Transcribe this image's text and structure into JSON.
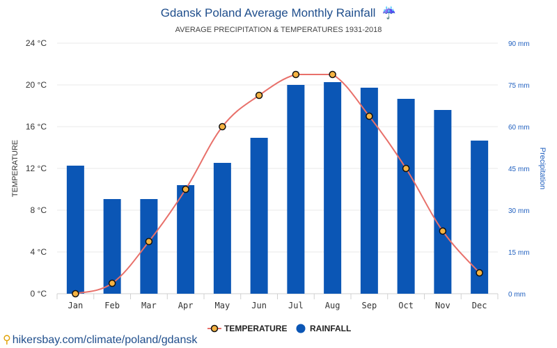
{
  "chart_data": {
    "type": "bar",
    "title": "Gdansk Poland Average Monthly Rainfall",
    "title_icon": "umbrella-rain-icon",
    "title_icon_glyph": "☔",
    "subtitle": "AVERAGE PRECIPITATION & TEMPERATURES 1931-2018",
    "categories": [
      "Jan",
      "Feb",
      "Mar",
      "Apr",
      "May",
      "Jun",
      "Jul",
      "Aug",
      "Sep",
      "Oct",
      "Nov",
      "Dec"
    ],
    "series": [
      {
        "name": "RAINFALL",
        "type": "bar",
        "axis": "right",
        "unit": "mm",
        "color": "#0b56b5",
        "values": [
          46,
          34,
          34,
          39,
          47,
          56,
          75,
          76,
          74,
          70,
          66,
          55
        ]
      },
      {
        "name": "TEMPERATURE",
        "type": "line",
        "axis": "left",
        "unit": "°C",
        "color": "#e8706a",
        "marker_fill": "#f5b342",
        "values": [
          0,
          1,
          5,
          10,
          16,
          19,
          21,
          21,
          17,
          12,
          6,
          2
        ]
      }
    ],
    "ylabel": "TEMPERATURE",
    "ylim": [
      0,
      24
    ],
    "yticks": [
      "0 °C",
      "4 °C",
      "8 °C",
      "12 °C",
      "16 °C",
      "20 °C",
      "24 °C"
    ],
    "y2label": "Precipitation",
    "y2lim": [
      0,
      90
    ],
    "y2ticks": [
      "0 mm",
      "15 mm",
      "30 mm",
      "45 mm",
      "60 mm",
      "75 mm",
      "90 mm"
    ],
    "grid": true,
    "legend_position": "bottom-center"
  },
  "footer": {
    "source_text": "hikersbay.com/climate/poland/gdansk"
  }
}
